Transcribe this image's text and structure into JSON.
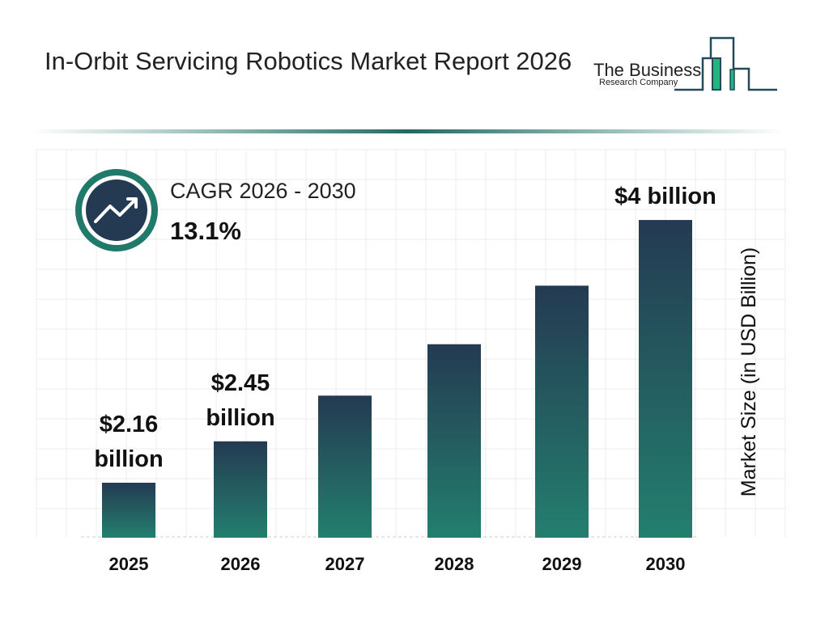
{
  "header": {
    "title": "In-Orbit Servicing Robotics Market Report 2026"
  },
  "logo": {
    "line1": "The Business",
    "line2": "Research Company"
  },
  "cagr": {
    "label": "CAGR 2026 - 2030",
    "value": "13.1%",
    "icon": "trending-up-icon"
  },
  "colors": {
    "bar_top": "#243a52",
    "bar_bottom": "#237f6e",
    "accent": "#1f7a6a",
    "logo_green": "#22b57f"
  },
  "chart_data": {
    "type": "bar",
    "categories": [
      "2025",
      "2026",
      "2027",
      "2028",
      "2029",
      "2030"
    ],
    "values": [
      2.16,
      2.45,
      2.77,
      3.13,
      3.54,
      4.0
    ],
    "data_labels": [
      [
        "$2.16",
        "billion"
      ],
      [
        "$2.45",
        "billion"
      ],
      null,
      null,
      null,
      [
        "$4 billion"
      ]
    ],
    "ylabel": "Market Size (in USD Billion)",
    "xlabel": "",
    "grid": true,
    "legend": "none"
  }
}
